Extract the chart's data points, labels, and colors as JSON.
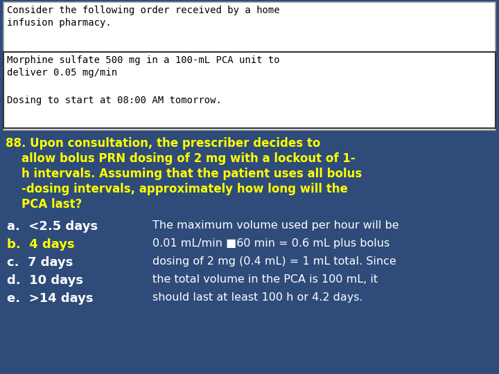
{
  "bg_color": "#2E4B7A",
  "white_box_color": "#FFFFFF",
  "top_text": "Consider the following order received by a home\ninfusion pharmacy.",
  "inner_box_text1": "Morphine sulfate 500 mg in a 100-mL PCA unit to\ndeliver 0.05 mg/min",
  "inner_box_text2": "Dosing to start at 08:00 AM tomorrow.",
  "question_line1": "88. Upon consultation, the prescriber decides to",
  "question_line2": "    allow bolus PRN dosing of 2 mg with a lockout of 1-",
  "question_line3": "    h intervals. Assuming that the patient uses all bolus",
  "question_line4": "    -dosing intervals, approximately how long will the",
  "question_line5": "    PCA last?",
  "question_color": "#FFFF00",
  "answers": [
    "a.  <2.5 days",
    "b.  4 days",
    "c.  7 days",
    "d.  10 days",
    "e.  >14 days"
  ],
  "answer_colors": [
    "#FFFFFF",
    "#FFFF00",
    "#FFFFFF",
    "#FFFFFF",
    "#FFFFFF"
  ],
  "explanation_line1": "The maximum volume used per hour will be",
  "explanation_line2": "0.01 mL/min ■60 min = 0.6 mL plus bolus",
  "explanation_line3": "dosing of 2 mg (0.4 mL) = 1 mL total. Since",
  "explanation_line4": "the total volume in the PCA is 100 mL, it",
  "explanation_line5": "should last at least 100 h or 4.2 days.",
  "explanation_color": "#FFFFFF",
  "mono_font": "DejaVu Sans Mono",
  "sans_font": "DejaVu Sans"
}
